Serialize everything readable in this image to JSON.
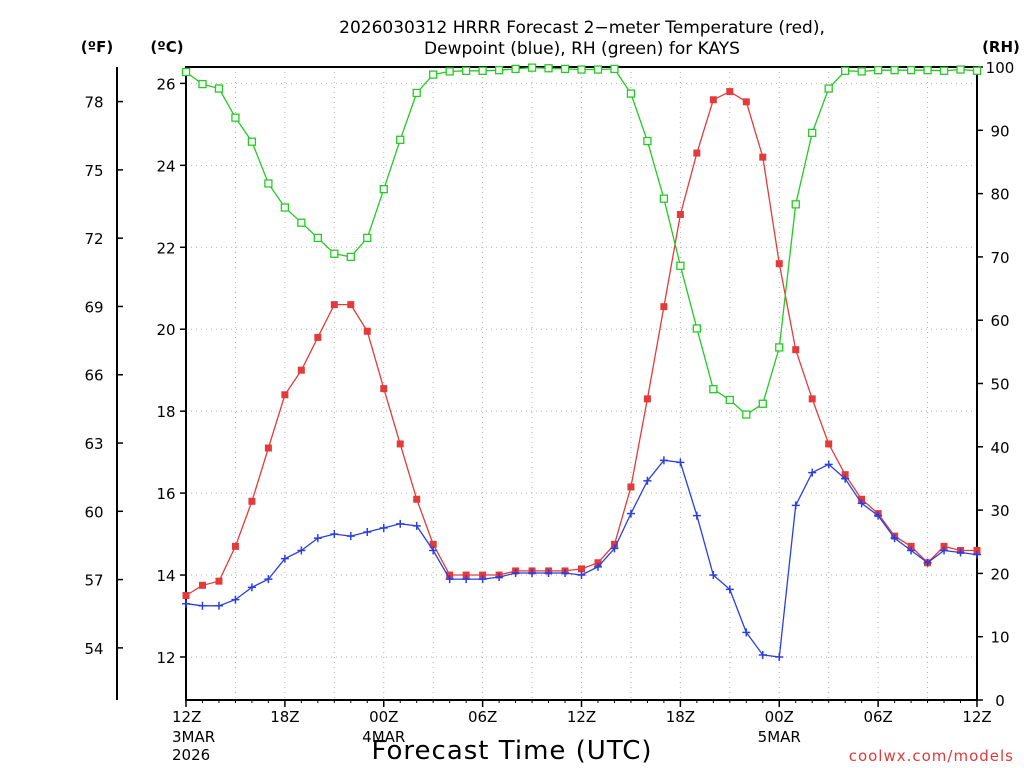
{
  "chart_data": {
    "type": "line",
    "title_lines": [
      "2026030312 HRRR Forecast 2−meter Temperature (red),",
      "Dewpoint (blue), RH (green) for KAYS"
    ],
    "xlabel": "Forecast Time (UTC)",
    "credit": "coolwx.com/models",
    "units": {
      "fahrenheit": "(ºF)",
      "celsius": "(ºC)",
      "rh": "(RH)"
    },
    "x_range_hours": [
      0,
      48
    ],
    "x_ticks": [
      {
        "hour": 0,
        "label": "12Z",
        "sub": [
          "3MAR",
          "2026"
        ]
      },
      {
        "hour": 6,
        "label": "18Z",
        "sub": []
      },
      {
        "hour": 12,
        "label": "00Z",
        "sub": [
          "4MAR"
        ]
      },
      {
        "hour": 18,
        "label": "06Z",
        "sub": []
      },
      {
        "hour": 24,
        "label": "12Z",
        "sub": []
      },
      {
        "hour": 30,
        "label": "18Z",
        "sub": []
      },
      {
        "hour": 36,
        "label": "00Z",
        "sub": [
          "5MAR"
        ]
      },
      {
        "hour": 42,
        "label": "06Z",
        "sub": []
      },
      {
        "hour": 48,
        "label": "12Z",
        "sub": []
      }
    ],
    "celsius_axis": {
      "range": [
        10.95,
        26.4
      ],
      "ticks": [
        "12",
        "14",
        "16",
        "18",
        "20",
        "22",
        "24",
        "26"
      ]
    },
    "fahrenheit_axis": {
      "ticks": [
        "54",
        "57",
        "60",
        "63",
        "66",
        "69",
        "72",
        "75",
        "78"
      ]
    },
    "rh_axis": {
      "range": [
        0,
        100
      ],
      "ticks": [
        "0",
        "10",
        "20",
        "30",
        "40",
        "50",
        "60",
        "70",
        "80",
        "90",
        "100"
      ]
    },
    "grid": true,
    "series": [
      {
        "name": "Temperature",
        "axis": "celsius",
        "color": "#e53a3a",
        "marker": "filled-square",
        "x": [
          0,
          1,
          2,
          3,
          4,
          5,
          6,
          7,
          8,
          9,
          10,
          11,
          12,
          13,
          14,
          15,
          16,
          17,
          18,
          19,
          20,
          21,
          22,
          23,
          24,
          25,
          26,
          27,
          28,
          29,
          30,
          31,
          32,
          33,
          34,
          35,
          36,
          37,
          38,
          39,
          40,
          41,
          42,
          43,
          44,
          45,
          46,
          47,
          48
        ],
        "y": [
          13.5,
          13.75,
          13.85,
          14.7,
          15.8,
          17.1,
          18.4,
          19.0,
          19.8,
          20.6,
          20.6,
          19.95,
          18.55,
          17.2,
          15.85,
          14.75,
          14.0,
          14.0,
          14.0,
          14.0,
          14.1,
          14.1,
          14.1,
          14.1,
          14.15,
          14.3,
          14.75,
          16.15,
          18.3,
          20.55,
          22.8,
          24.3,
          25.6,
          25.8,
          25.55,
          24.2,
          21.6,
          19.5,
          18.3,
          17.2,
          16.45,
          15.85,
          15.5,
          14.95,
          14.7,
          14.3,
          14.7,
          14.6,
          14.6
        ]
      },
      {
        "name": "Dewpoint",
        "axis": "celsius",
        "color": "#2a3fe0",
        "marker": "plus",
        "x": [
          0,
          1,
          2,
          3,
          4,
          5,
          6,
          7,
          8,
          9,
          10,
          11,
          12,
          13,
          14,
          15,
          16,
          17,
          18,
          19,
          20,
          21,
          22,
          23,
          24,
          25,
          26,
          27,
          28,
          29,
          30,
          31,
          32,
          33,
          34,
          35,
          36,
          37,
          38,
          39,
          40,
          41,
          42,
          43,
          44,
          45,
          46,
          47,
          48
        ],
        "y": [
          13.3,
          13.25,
          13.25,
          13.4,
          13.7,
          13.9,
          14.4,
          14.6,
          14.9,
          15.0,
          14.95,
          15.05,
          15.15,
          15.25,
          15.2,
          14.6,
          13.9,
          13.9,
          13.9,
          13.95,
          14.05,
          14.05,
          14.05,
          14.05,
          14.0,
          14.2,
          14.65,
          15.5,
          16.3,
          16.8,
          16.75,
          15.45,
          14.0,
          13.65,
          12.6,
          12.05,
          12.0,
          15.7,
          16.5,
          16.7,
          16.35,
          15.75,
          15.45,
          14.9,
          14.6,
          14.3,
          14.6,
          14.55,
          14.5
        ]
      },
      {
        "name": "RH",
        "axis": "rh",
        "color": "#22cc22",
        "marker": "open-square",
        "x": [
          0,
          1,
          2,
          3,
          4,
          5,
          6,
          7,
          8,
          9,
          10,
          11,
          12,
          13,
          14,
          15,
          16,
          17,
          18,
          19,
          20,
          21,
          22,
          23,
          24,
          25,
          26,
          27,
          28,
          29,
          30,
          31,
          32,
          33,
          34,
          35,
          36,
          37,
          38,
          39,
          40,
          41,
          42,
          43,
          44,
          45,
          46,
          47,
          48
        ],
        "y": [
          99.2,
          97.3,
          96.6,
          92.0,
          88.2,
          81.6,
          77.8,
          75.4,
          73.0,
          70.5,
          70.0,
          73.0,
          80.7,
          88.5,
          95.9,
          98.8,
          99.3,
          99.4,
          99.4,
          99.5,
          99.7,
          99.9,
          99.8,
          99.7,
          99.6,
          99.6,
          99.7,
          95.8,
          88.3,
          79.2,
          68.6,
          58.7,
          49.1,
          47.4,
          45.1,
          46.8,
          55.7,
          78.3,
          89.6,
          96.6,
          99.4,
          99.3,
          99.5,
          99.5,
          99.5,
          99.5,
          99.4,
          99.6,
          99.4
        ]
      }
    ]
  }
}
